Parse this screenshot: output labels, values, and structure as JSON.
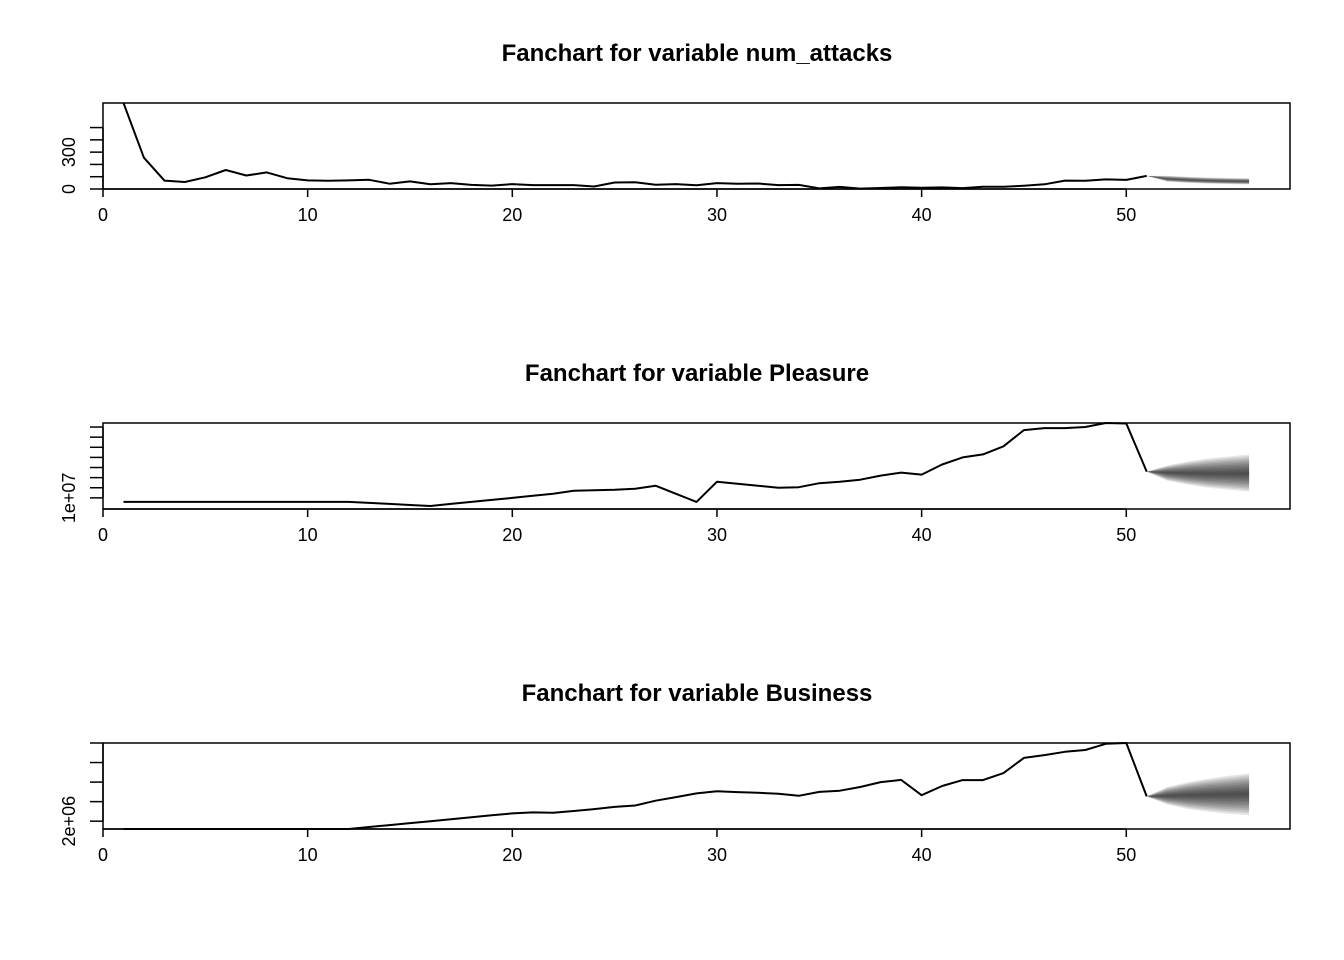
{
  "chart_data": [
    {
      "type": "line",
      "title": "Fanchart for variable num_attacks",
      "xlabel": "",
      "ylabel": "",
      "xlim": [
        0,
        58
      ],
      "ylim": [
        0,
        700
      ],
      "x_ticks": [
        0,
        10,
        20,
        30,
        40,
        50
      ],
      "y_ticks": [
        0,
        100,
        200,
        300,
        400,
        500
      ],
      "y_tick_labels": [
        "0",
        "",
        "",
        "300",
        "",
        ""
      ],
      "series": [
        {
          "x": [
            1,
            2,
            3,
            4,
            5,
            6,
            7,
            8,
            9,
            10,
            11,
            12,
            13,
            14,
            15,
            16,
            17,
            18,
            19,
            20,
            21,
            22,
            23,
            24,
            25,
            26,
            27,
            28,
            29,
            30,
            31,
            32,
            33,
            34,
            35,
            36,
            37,
            38,
            39,
            40,
            41,
            42,
            43,
            44,
            45,
            46,
            47,
            48,
            49,
            50,
            51
          ],
          "values": [
            700,
            255,
            68,
            57,
            95,
            155,
            110,
            135,
            88,
            70,
            67,
            70,
            75,
            43,
            62,
            38,
            48,
            33,
            28,
            40,
            32,
            32,
            32,
            20,
            53,
            55,
            35,
            40,
            30,
            48,
            42,
            45,
            32,
            33,
            5,
            17,
            3,
            8,
            14,
            10,
            13,
            7,
            18,
            18,
            27,
            38,
            68,
            67,
            78,
            74,
            107
          ]
        }
      ],
      "forecast": {
        "x": [
          51,
          52,
          53,
          54,
          55,
          56
        ],
        "center": [
          107,
          82,
          73,
          67,
          64,
          62
        ],
        "lower": [
          107,
          60,
          50,
          44,
          40,
          37
        ],
        "upper": [
          107,
          108,
          100,
          94,
          90,
          87
        ]
      }
    },
    {
      "type": "line",
      "title": "Fanchart for variable Pleasure",
      "xlabel": "",
      "ylabel": "",
      "xlim": [
        0,
        58
      ],
      "ylim": [
        8900000,
        17400000
      ],
      "x_ticks": [
        0,
        10,
        20,
        30,
        40,
        50
      ],
      "y_ticks": [
        10000000,
        11000000,
        12000000,
        13000000,
        14000000,
        15000000,
        16000000,
        17000000
      ],
      "y_tick_labels": [
        "1e+07",
        "",
        "",
        "",
        "",
        "",
        "",
        ""
      ],
      "series": [
        {
          "x": [
            1,
            2,
            3,
            4,
            5,
            6,
            7,
            8,
            9,
            10,
            11,
            12,
            13,
            14,
            15,
            16,
            17,
            18,
            19,
            20,
            21,
            22,
            23,
            24,
            25,
            26,
            27,
            28,
            29,
            30,
            31,
            32,
            33,
            34,
            35,
            36,
            37,
            38,
            39,
            40,
            41,
            42,
            43,
            44,
            45,
            46,
            47,
            48,
            49,
            50,
            51
          ],
          "values": [
            9600000,
            9600000,
            9600000,
            9600000,
            9600000,
            9600000,
            9600000,
            9600000,
            9600000,
            9600000,
            9600000,
            9600000,
            9500000,
            9400000,
            9300000,
            9200000,
            9400000,
            9600000,
            9800000,
            10000000,
            10200000,
            10400000,
            10700000,
            10750000,
            10800000,
            10900000,
            11200000,
            10400000,
            9600000,
            11600000,
            11400000,
            11200000,
            11000000,
            11050000,
            11450000,
            11600000,
            11800000,
            12200000,
            12500000,
            12300000,
            13300000,
            14000000,
            14300000,
            15100000,
            16700000,
            16900000,
            16900000,
            17000000,
            17400000,
            17350000,
            12600000
          ]
        }
      ],
      "forecast": {
        "x": [
          51,
          52,
          53,
          54,
          55,
          56
        ],
        "center": [
          12600000,
          12500000,
          12450000,
          12400000,
          12400000,
          12400000
        ],
        "lower": [
          12600000,
          11700000,
          11300000,
          11000000,
          10800000,
          10600000
        ],
        "upper": [
          12600000,
          13200000,
          13600000,
          13900000,
          14100000,
          14300000
        ]
      }
    },
    {
      "type": "line",
      "title": "Fanchart for variable Business",
      "xlabel": "",
      "ylabel": "",
      "xlim": [
        0,
        58
      ],
      "ylim": [
        1600000,
        6000000
      ],
      "x_ticks": [
        0,
        10,
        20,
        30,
        40,
        50
      ],
      "y_ticks": [
        2000000,
        3000000,
        4000000,
        5000000,
        6000000
      ],
      "y_tick_labels": [
        "2e+06",
        "",
        "",
        "",
        ""
      ],
      "series": [
        {
          "x": [
            1,
            2,
            3,
            4,
            5,
            6,
            7,
            8,
            9,
            10,
            11,
            12,
            13,
            14,
            15,
            16,
            17,
            18,
            19,
            20,
            21,
            22,
            23,
            24,
            25,
            26,
            27,
            28,
            29,
            30,
            31,
            32,
            33,
            34,
            35,
            36,
            37,
            38,
            39,
            40,
            41,
            42,
            43,
            44,
            45,
            46,
            47,
            48,
            49,
            50,
            51
          ],
          "values": [
            1600000,
            1600000,
            1600000,
            1600000,
            1600000,
            1600000,
            1600000,
            1600000,
            1600000,
            1600000,
            1600000,
            1600000,
            1700000,
            1800000,
            1900000,
            2000000,
            2100000,
            2200000,
            2300000,
            2400000,
            2450000,
            2430000,
            2520000,
            2620000,
            2730000,
            2800000,
            3050000,
            3230000,
            3420000,
            3530000,
            3490000,
            3450000,
            3400000,
            3300000,
            3500000,
            3560000,
            3750000,
            4000000,
            4110000,
            3330000,
            3800000,
            4100000,
            4100000,
            4460000,
            5240000,
            5380000,
            5550000,
            5640000,
            5960000,
            6000000,
            3270000
          ]
        }
      ],
      "forecast": {
        "x": [
          51,
          52,
          53,
          54,
          55,
          56
        ],
        "center": [
          3270000,
          3300000,
          3330000,
          3350000,
          3370000,
          3400000
        ],
        "lower": [
          3270000,
          2850000,
          2620000,
          2480000,
          2370000,
          2300000
        ],
        "upper": [
          3270000,
          3750000,
          4000000,
          4180000,
          4320000,
          4450000
        ]
      }
    }
  ]
}
